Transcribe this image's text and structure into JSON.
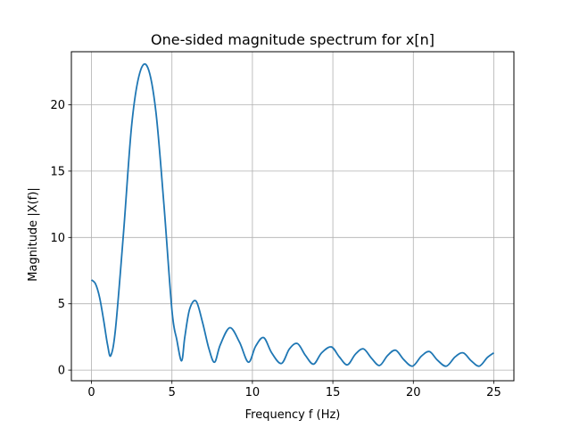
{
  "chart_data": {
    "type": "line",
    "title": "One-sided magnitude spectrum for x[n]",
    "xlabel": "Frequency f (Hz)",
    "ylabel": "Magnitude |X(f)|",
    "xlim": [
      -1.25,
      26.25
    ],
    "ylim": [
      -0.8,
      24.0
    ],
    "x_ticks": [
      0,
      5,
      10,
      15,
      20,
      25
    ],
    "y_ticks": [
      0,
      5,
      10,
      15,
      20
    ],
    "grid": true,
    "series": [
      {
        "color": "#1f77b4",
        "x": [
          0.0,
          0.25,
          0.5,
          0.75,
          1.0,
          1.2,
          1.5,
          2.0,
          2.5,
          3.0,
          3.5,
          4.0,
          4.5,
          5.0,
          5.3,
          5.6,
          5.8,
          6.1,
          6.5,
          6.9,
          7.3,
          7.65,
          8.0,
          8.6,
          9.2,
          9.75,
          10.2,
          10.7,
          11.2,
          11.8,
          12.3,
          12.8,
          13.3,
          13.8,
          14.3,
          14.9,
          15.4,
          15.9,
          16.4,
          16.9,
          17.4,
          17.9,
          18.4,
          18.9,
          19.4,
          19.95,
          20.5,
          21.0,
          21.5,
          22.05,
          22.6,
          23.1,
          23.6,
          24.1,
          24.6,
          25.0
        ],
        "y": [
          6.8,
          6.5,
          5.5,
          3.8,
          1.9,
          1.1,
          3.2,
          10.5,
          18.5,
          22.4,
          22.8,
          19.5,
          12.5,
          4.5,
          2.3,
          0.7,
          2.5,
          4.6,
          5.2,
          3.6,
          1.6,
          0.6,
          1.9,
          3.2,
          2.1,
          0.6,
          1.8,
          2.45,
          1.3,
          0.5,
          1.6,
          2.0,
          1.1,
          0.45,
          1.3,
          1.75,
          1.0,
          0.4,
          1.2,
          1.6,
          0.9,
          0.35,
          1.1,
          1.5,
          0.8,
          0.3,
          1.05,
          1.4,
          0.75,
          0.3,
          1.0,
          1.3,
          0.7,
          0.3,
          0.95,
          1.3
        ]
      }
    ]
  }
}
